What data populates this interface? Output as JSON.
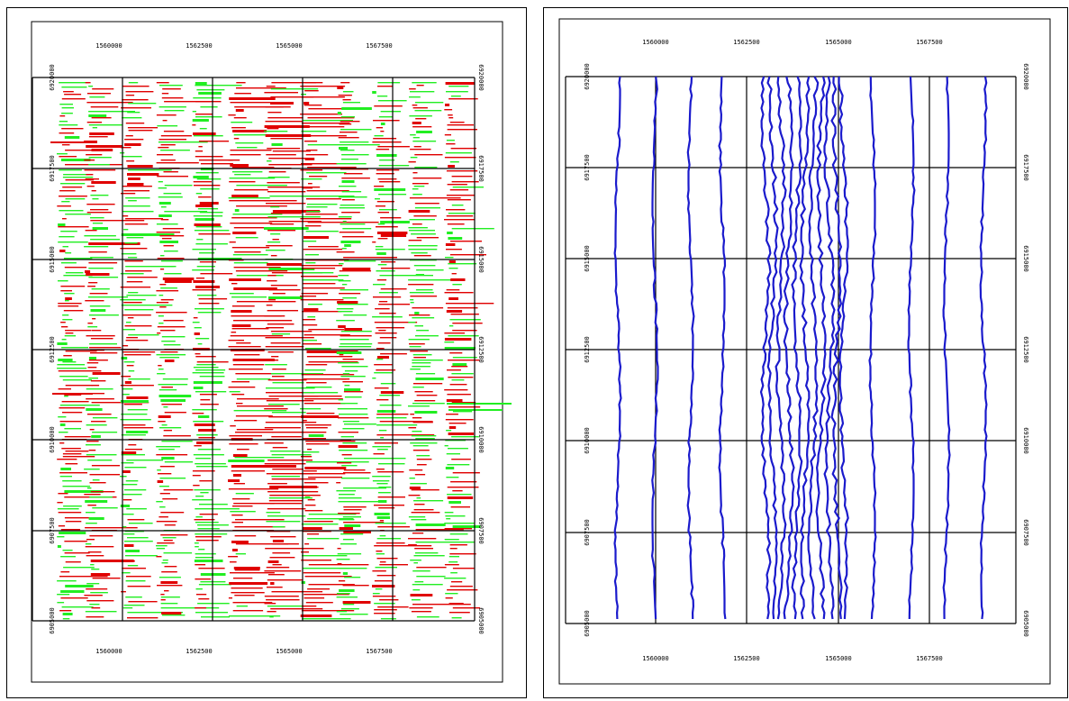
{
  "left_map": {
    "colors": {
      "negative": "#e00000",
      "positive": "#22ee22",
      "grid": "#000000"
    },
    "x_ticks_top": [
      "1560000",
      "1562500",
      "1565000",
      "1567500"
    ],
    "x_ticks_bottom": [
      "1560000",
      "1562500",
      "1565000",
      "1567500"
    ],
    "y_ticks_left": [
      "6920000",
      "6917500",
      "6915000",
      "6912500",
      "6910000",
      "6907500",
      "6905000"
    ],
    "y_ticks_right": [
      "6920000",
      "6917500",
      "6915000",
      "6912500",
      "6910000",
      "6907500",
      "6905000"
    ]
  },
  "right_map": {
    "colors": {
      "line": "#1a1acc",
      "grid": "#000000"
    },
    "x_ticks_top": [
      "1560000",
      "1562500",
      "1565000",
      "1567500"
    ],
    "x_ticks_bottom": [
      "1560000",
      "1562500",
      "1565000",
      "1567500"
    ],
    "y_ticks_left": [
      "6920000",
      "6917500",
      "6915000",
      "6912500",
      "6910000",
      "6907500",
      "6905000"
    ],
    "y_ticks_right": [
      "6920000",
      "6917500",
      "6915000",
      "6912500",
      "6910000",
      "6907500",
      "6905000"
    ]
  }
}
